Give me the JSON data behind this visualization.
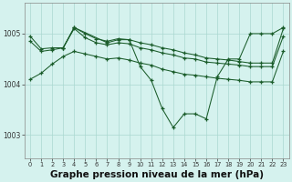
{
  "bg_color": "#d5f2ee",
  "grid_color": "#aad8d0",
  "line_color": "#1a5c2a",
  "xlabel": "Graphe pression niveau de la mer (hPa)",
  "xlabel_fontsize": 7.5,
  "ylabel_ticks": [
    1003,
    1004,
    1005
  ],
  "xlim": [
    -0.5,
    23.5
  ],
  "ylim": [
    1002.55,
    1005.6
  ],
  "series": [
    {
      "x": [
        0,
        1,
        2,
        3,
        4,
        5,
        6,
        7,
        8,
        9,
        10,
        11,
        12,
        13,
        14,
        15,
        16,
        17,
        18,
        19,
        20,
        21,
        22,
        23
      ],
      "y": [
        1004.95,
        1004.7,
        1004.72,
        1004.72,
        1005.12,
        1005.0,
        1004.9,
        1004.85,
        1004.9,
        1004.88,
        1004.82,
        1004.78,
        1004.72,
        1004.68,
        1004.62,
        1004.58,
        1004.52,
        1004.5,
        1004.48,
        1004.45,
        1004.42,
        1004.42,
        1004.42,
        1005.1
      ]
    },
    {
      "x": [
        0,
        1,
        2,
        3,
        4,
        5,
        6,
        7,
        8,
        9,
        10,
        11,
        12,
        13,
        14,
        15,
        16,
        17,
        18,
        19,
        20,
        21,
        22,
        23
      ],
      "y": [
        1004.85,
        1004.65,
        1004.68,
        1004.72,
        1005.1,
        1004.92,
        1004.82,
        1004.78,
        1004.82,
        1004.8,
        1004.72,
        1004.68,
        1004.62,
        1004.58,
        1004.52,
        1004.5,
        1004.44,
        1004.42,
        1004.4,
        1004.38,
        1004.35,
        1004.35,
        1004.35,
        1004.95
      ]
    },
    {
      "x": [
        0,
        1,
        2,
        3,
        4,
        5,
        6,
        7,
        8,
        9,
        10,
        11,
        12,
        13,
        14,
        15,
        16,
        17,
        18,
        19,
        20,
        21,
        22,
        23
      ],
      "y": [
        1004.1,
        1004.22,
        1004.4,
        1004.55,
        1004.65,
        1004.6,
        1004.55,
        1004.5,
        1004.52,
        1004.48,
        1004.42,
        1004.38,
        1004.3,
        1004.25,
        1004.2,
        1004.18,
        1004.15,
        1004.12,
        1004.1,
        1004.08,
        1004.05,
        1004.05,
        1004.05,
        1004.65
      ]
    },
    {
      "x": [
        3,
        4,
        7,
        8,
        9,
        10,
        11,
        12,
        13,
        14,
        15,
        16,
        17,
        18,
        19,
        20,
        21,
        22,
        23
      ],
      "y": [
        1004.72,
        1005.12,
        1004.82,
        1004.88,
        1004.88,
        1004.35,
        1004.08,
        1003.52,
        1003.15,
        1003.42,
        1003.42,
        1003.32,
        1004.15,
        1004.5,
        1004.5,
        1005.0,
        1005.0,
        1005.0,
        1005.12
      ]
    }
  ]
}
